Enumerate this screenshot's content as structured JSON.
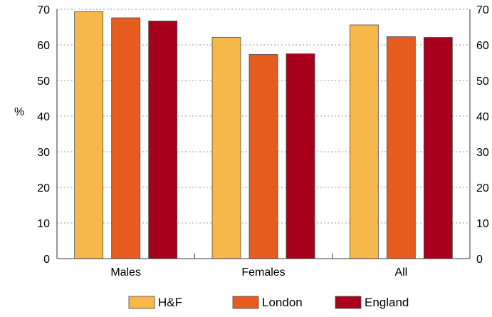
{
  "chart_data": {
    "type": "bar",
    "title": "",
    "xlabel": "",
    "ylabel": "%",
    "ylim": [
      0,
      70
    ],
    "yticks": [
      0,
      10,
      20,
      30,
      40,
      50,
      60,
      70
    ],
    "ytick_labels": [
      "0",
      "10",
      "20",
      "30",
      "40",
      "50",
      "60",
      "70"
    ],
    "grid": "horizontal-dotted",
    "secondary_y_axis": true,
    "legend_position": "bottom",
    "categories": [
      "Males",
      "Females",
      "All"
    ],
    "series": [
      {
        "name": "H&F",
        "color": "#F7B84B",
        "values": [
          69.3,
          62.1,
          65.6
        ]
      },
      {
        "name": "London",
        "color": "#E65C1E",
        "values": [
          67.6,
          57.3,
          62.3
        ]
      },
      {
        "name": "England",
        "color": "#A8001C",
        "values": [
          66.7,
          57.5,
          62.1
        ]
      }
    ]
  }
}
